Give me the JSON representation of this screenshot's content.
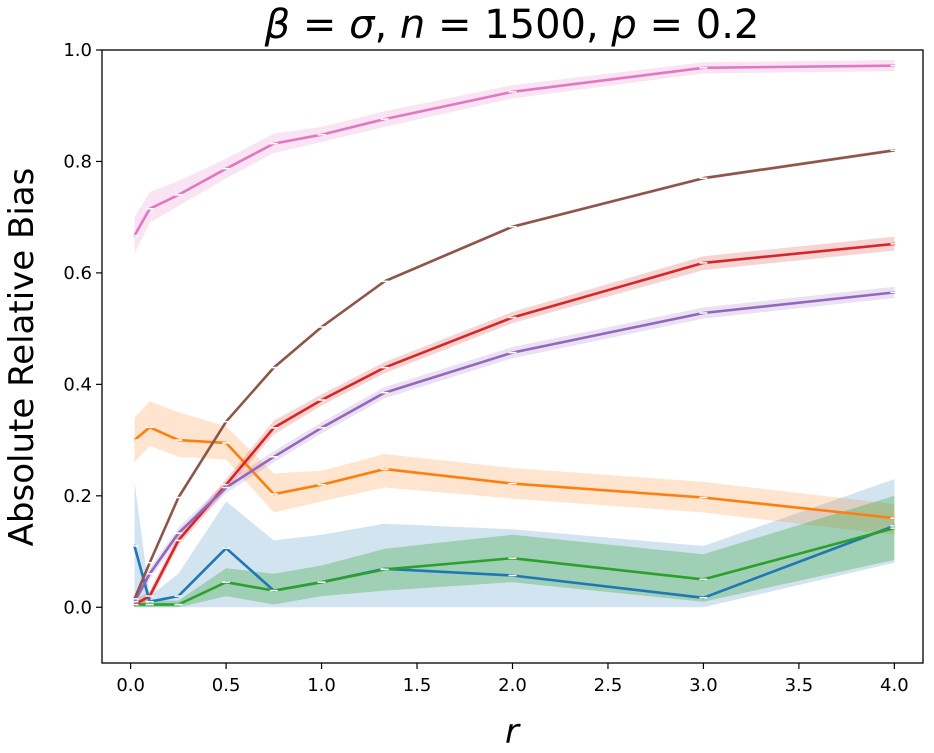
{
  "chart_data": {
    "type": "line",
    "title": "β = σ, n = 1500, p = 0.2",
    "title_parts": {
      "beta": "β",
      "sigma": "σ",
      "n_symbol": "n",
      "n_value": "1500",
      "p_symbol": "p",
      "p_value": "0.2"
    },
    "xlabel": "r",
    "ylabel": "Absolute Relative Bias",
    "xlim": [
      -0.15,
      4.15
    ],
    "ylim": [
      -0.1,
      1.0
    ],
    "x_ticks": [
      0.0,
      0.5,
      1.0,
      1.5,
      2.0,
      2.5,
      3.0,
      3.5,
      4.0
    ],
    "x_tick_labels": [
      "0.0",
      "0.5",
      "1.0",
      "1.5",
      "2.0",
      "2.5",
      "3.0",
      "3.5",
      "4.0"
    ],
    "y_ticks": [
      0.0,
      0.2,
      0.4,
      0.6,
      0.8,
      1.0
    ],
    "y_tick_labels": [
      "0.0",
      "0.2",
      "0.4",
      "0.6",
      "0.8",
      "1.0"
    ],
    "grid": false,
    "legend": "none",
    "x": [
      0.02,
      0.1,
      0.25,
      0.5,
      0.75,
      1.0,
      1.33,
      2.0,
      3.0,
      4.0
    ],
    "series": [
      {
        "name": "blue",
        "color": "#1f77b4",
        "band_opacity": 0.2,
        "values": [
          0.11,
          0.01,
          0.02,
          0.106,
          0.03,
          0.045,
          0.069,
          0.057,
          0.017,
          0.146
        ],
        "lower": [
          0.0,
          0.0,
          0.0,
          0.0,
          0.0,
          0.0,
          0.0,
          0.0,
          0.0,
          0.08
        ],
        "upper": [
          0.225,
          0.02,
          0.06,
          0.19,
          0.12,
          0.13,
          0.15,
          0.14,
          0.11,
          0.23
        ]
      },
      {
        "name": "orange",
        "color": "#ff7f0e",
        "band_opacity": 0.2,
        "values": [
          0.3,
          0.323,
          0.3,
          0.295,
          0.203,
          0.22,
          0.248,
          0.222,
          0.197,
          0.16
        ],
        "lower": [
          0.26,
          0.29,
          0.27,
          0.265,
          0.17,
          0.19,
          0.215,
          0.195,
          0.17,
          0.13
        ],
        "upper": [
          0.34,
          0.37,
          0.35,
          0.325,
          0.24,
          0.245,
          0.275,
          0.25,
          0.225,
          0.185
        ]
      },
      {
        "name": "green",
        "color": "#2ca02c",
        "band_opacity": 0.3,
        "values": [
          0.005,
          0.005,
          0.005,
          0.045,
          0.03,
          0.045,
          0.068,
          0.088,
          0.05,
          0.142
        ],
        "lower": [
          0.0,
          0.0,
          0.0,
          0.02,
          0.005,
          0.02,
          0.03,
          0.045,
          0.01,
          0.085
        ],
        "upper": [
          0.012,
          0.012,
          0.012,
          0.07,
          0.06,
          0.075,
          0.105,
          0.13,
          0.095,
          0.2
        ]
      },
      {
        "name": "red",
        "color": "#d62728",
        "band_opacity": 0.2,
        "values": [
          0.005,
          0.02,
          0.12,
          0.22,
          0.322,
          0.372,
          0.43,
          0.52,
          0.618,
          0.652
        ],
        "lower": [
          0.0,
          0.01,
          0.11,
          0.21,
          0.31,
          0.362,
          0.42,
          0.51,
          0.605,
          0.64
        ],
        "upper": [
          0.012,
          0.03,
          0.13,
          0.23,
          0.335,
          0.382,
          0.44,
          0.53,
          0.63,
          0.665
        ]
      },
      {
        "name": "purple",
        "color": "#9467bd",
        "band_opacity": 0.2,
        "values": [
          0.01,
          0.06,
          0.133,
          0.215,
          0.27,
          0.322,
          0.385,
          0.457,
          0.528,
          0.565
        ],
        "lower": [
          0.005,
          0.05,
          0.123,
          0.205,
          0.26,
          0.312,
          0.375,
          0.447,
          0.518,
          0.555
        ],
        "upper": [
          0.015,
          0.07,
          0.143,
          0.225,
          0.28,
          0.332,
          0.395,
          0.467,
          0.538,
          0.575
        ]
      },
      {
        "name": "brown",
        "color": "#8c564b",
        "band_opacity": 0.2,
        "values": [
          0.015,
          0.08,
          0.197,
          0.333,
          0.43,
          0.503,
          0.585,
          0.683,
          0.77,
          0.82
        ],
        "lower": [
          0.012,
          0.077,
          0.194,
          0.33,
          0.427,
          0.5,
          0.582,
          0.68,
          0.767,
          0.817
        ],
        "upper": [
          0.018,
          0.083,
          0.2,
          0.336,
          0.433,
          0.506,
          0.588,
          0.686,
          0.773,
          0.823
        ]
      },
      {
        "name": "pink",
        "color": "#e377c2",
        "band_opacity": 0.2,
        "values": [
          0.667,
          0.715,
          0.74,
          0.787,
          0.832,
          0.848,
          0.876,
          0.925,
          0.968,
          0.972
        ],
        "lower": [
          0.635,
          0.69,
          0.72,
          0.77,
          0.815,
          0.835,
          0.862,
          0.913,
          0.958,
          0.962
        ],
        "upper": [
          0.7,
          0.745,
          0.765,
          0.805,
          0.85,
          0.862,
          0.89,
          0.937,
          0.978,
          0.982
        ]
      }
    ]
  }
}
